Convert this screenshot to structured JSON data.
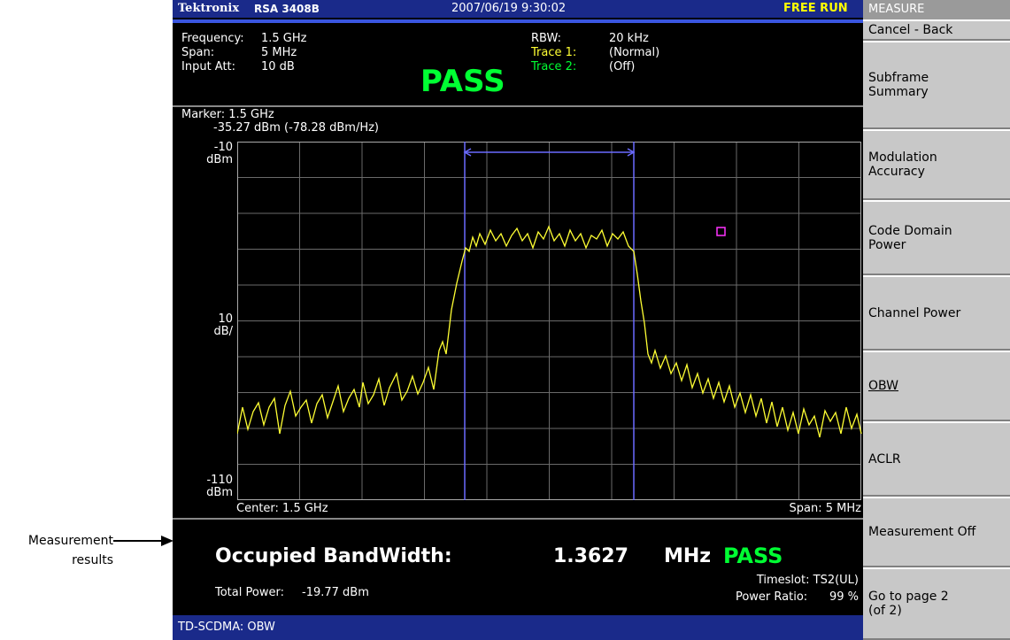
{
  "header": {
    "brand": "Tektronix",
    "model": "RSA 3408B",
    "datetime": "2007/06/19 9:30:02",
    "mode": "FREE RUN"
  },
  "settings": {
    "left": [
      {
        "label": "Frequency:",
        "value": "1.5 GHz"
      },
      {
        "label": "Span:",
        "value": "5 MHz"
      },
      {
        "label": "Input Att:",
        "value": "10 dB"
      }
    ],
    "status": "PASS",
    "right": [
      {
        "label": "RBW:",
        "value": "20 kHz"
      },
      {
        "label": "Trace 1:",
        "value": "(Normal)"
      },
      {
        "label": "Trace 2:",
        "value": "(Off)"
      }
    ]
  },
  "marker": {
    "label": "Marker: 1.5 GHz",
    "reading": "-35.27 dBm (-78.28 dBm/Hz)"
  },
  "axis": {
    "top": [
      "-10",
      "dBm"
    ],
    "scale": [
      "10",
      "dB/"
    ],
    "bottom": [
      "-110",
      "dBm"
    ],
    "center": "Center: 1.5 GHz",
    "span": "Span: 5 MHz"
  },
  "results": {
    "title": "Occupied BandWidth:",
    "value": "1.3627",
    "unit": "MHz",
    "status": "PASS",
    "total_power_label": "Total Power:",
    "total_power": "-19.77 dBm",
    "timeslot_label": "Timeslot:",
    "timeslot": "TS2(UL)",
    "power_ratio_label": "Power Ratio:",
    "power_ratio": "99 %"
  },
  "status_bar": "TD-SCDMA: OBW",
  "menu": {
    "title": "MEASURE",
    "back": "Cancel - Back",
    "items": [
      [
        "Subframe",
        "Summary"
      ],
      [
        "Modulation",
        "Accuracy"
      ],
      [
        "Code Domain",
        "Power"
      ],
      [
        "Channel Power"
      ],
      [
        "OBW"
      ],
      [
        "ACLR"
      ],
      [
        "Measurement Off"
      ],
      [
        "Go to page 2",
        "(of 2)"
      ]
    ]
  },
  "callout": [
    "Measurement",
    "results"
  ]
}
